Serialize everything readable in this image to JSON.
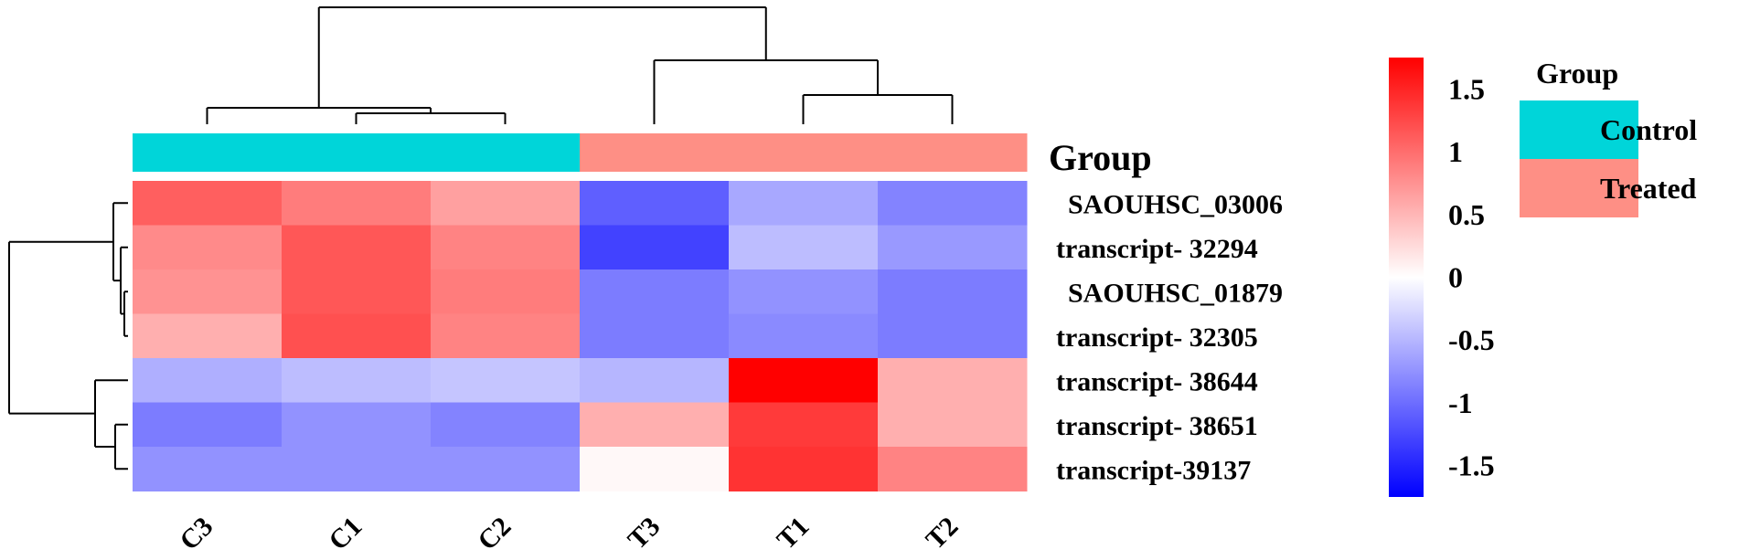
{
  "chart_data": {
    "type": "heatmap",
    "columns": [
      "C3",
      "C1",
      "C2",
      "T3",
      "T1",
      "T2"
    ],
    "rows": [
      "SAOUHSC_03006",
      "transcript- 32294",
      "SAOUHSC_01879",
      "transcript- 32305",
      "transcript- 38644",
      "transcript- 38651",
      "transcript-39137"
    ],
    "values": [
      [
        1.1,
        0.9,
        0.65,
        -1.1,
        -0.6,
        -0.85
      ],
      [
        0.8,
        1.15,
        0.85,
        -1.3,
        -0.45,
        -0.7
      ],
      [
        0.75,
        1.15,
        0.9,
        -0.9,
        -0.75,
        -0.9
      ],
      [
        0.55,
        1.2,
        0.85,
        -0.9,
        -0.8,
        -0.9
      ],
      [
        -0.55,
        -0.45,
        -0.4,
        -0.5,
        1.75,
        0.55
      ],
      [
        -0.9,
        -0.75,
        -0.85,
        0.55,
        1.35,
        0.55
      ],
      [
        -0.75,
        -0.75,
        -0.75,
        0.05,
        1.4,
        0.85
      ]
    ],
    "annotation": {
      "title": "Group",
      "groups": [
        "Control",
        "Control",
        "Control",
        "Treated",
        "Treated",
        "Treated"
      ]
    },
    "colorbar": {
      "range": [
        -1.75,
        1.75
      ],
      "ticks": [
        {
          "value": 1.5,
          "label": "1.5"
        },
        {
          "value": 1,
          "label": "1"
        },
        {
          "value": 0.5,
          "label": "0.5"
        },
        {
          "value": 0,
          "label": "0"
        },
        {
          "value": -0.5,
          "label": "-0.5"
        },
        {
          "value": -1,
          "label": "-1"
        },
        {
          "value": -1.5,
          "label": "-1.5"
        }
      ],
      "low_color": "#0000ff",
      "mid_color": "#ffffff",
      "high_color": "#ff0000"
    },
    "legend": {
      "title": "Group",
      "items": [
        {
          "label": "Control",
          "color": "#00d5d9"
        },
        {
          "label": "Treated",
          "color": "#fe8f85"
        }
      ]
    }
  }
}
